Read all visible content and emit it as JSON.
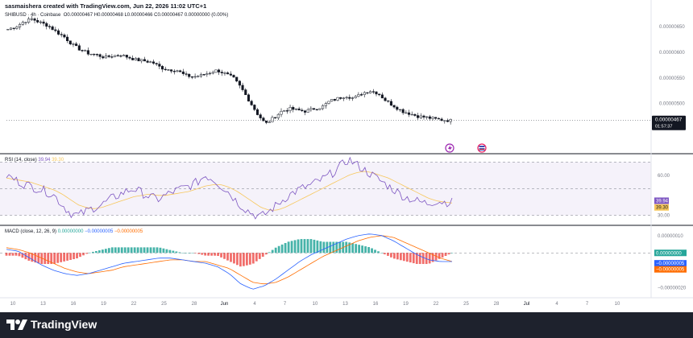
{
  "header": {
    "creator_text": "sasmaishera created with TradingView.com, Jun 22, 2026 11:02 UTC+1",
    "symbol": "SHIBUSD · 4h · Coinbase",
    "ohlc": "O0.00000467 H0.00000468 L0.00000466 C0.00000467 0.00000000 (0.00%)"
  },
  "colors": {
    "up": "#26a69a",
    "down": "#ef5350",
    "rsi_line": "#7e57c2",
    "rsi_ma": "#f7c75b",
    "macd_line": "#2962ff",
    "signal_line": "#ff6d00",
    "footer_bg": "#1e222d"
  },
  "chart_data": [
    {
      "type": "candlestick",
      "name": "price",
      "x_ticks": [
        "10",
        "13",
        "16",
        "19",
        "22",
        "25",
        "28",
        "Jun",
        "4",
        "7",
        "10",
        "13",
        "16",
        "19",
        "22",
        "25",
        "28",
        "Jul",
        "4",
        "7",
        "10"
      ],
      "y_ticks": [
        "0.00000650",
        "0.00000600",
        "0.00000550",
        "0.00000500"
      ],
      "ylim": [
        4.1e-06,
        6.8e-06
      ],
      "last_price": "0.00000467",
      "countdown": "01:57:37",
      "close_path": [
        6.45e-06,
        6.5e-06,
        6.6e-06,
        6.65e-06,
        6.58e-06,
        6.52e-06,
        6.4e-06,
        6.3e-06,
        6.15e-06,
        6.05e-06,
        5.98e-06,
        5.95e-06,
        5.9e-06,
        5.93e-06,
        5.95e-06,
        5.9e-06,
        5.85e-06,
        5.83e-06,
        5.8e-06,
        5.7e-06,
        5.66e-06,
        5.65e-06,
        5.55e-06,
        5.52e-06,
        5.55e-06,
        5.6e-06,
        5.65e-06,
        5.58e-06,
        5.5e-06,
        5.3e-06,
        5.05e-06,
        4.8e-06,
        4.6e-06,
        4.72e-06,
        4.85e-06,
        4.9e-06,
        4.87e-06,
        4.85e-06,
        4.9e-06,
        4.93e-06,
        5.05e-06,
        5.1e-06,
        5.15e-06,
        5.1e-06,
        5.2e-06,
        5.25e-06,
        5.2e-06,
        5.05e-06,
        4.95e-06,
        4.85e-06,
        4.8e-06,
        4.75e-06,
        4.73e-06,
        4.7e-06,
        4.68e-06,
        4.67e-06
      ]
    },
    {
      "type": "line",
      "name": "RSI",
      "label": "RSI",
      "params": "(14, close)",
      "rsi_value": "39.94",
      "ma_value": "39.30",
      "y_ticks": [
        "60.00",
        "30.00"
      ],
      "ylim": [
        25,
        75
      ],
      "band": [
        30,
        70
      ],
      "rsi_path": [
        60,
        57,
        54,
        52,
        50,
        48,
        45,
        38,
        32,
        30,
        33,
        36,
        38,
        42,
        45,
        48,
        50,
        47,
        44,
        42,
        45,
        48,
        50,
        52,
        55,
        60,
        57,
        52,
        47,
        40,
        35,
        31,
        29,
        33,
        38,
        43,
        47,
        50,
        52,
        55,
        58,
        62,
        67,
        72,
        68,
        64,
        60,
        56,
        52,
        48,
        44,
        42,
        40,
        39,
        41,
        40,
        39.94
      ],
      "ma_path": [
        58,
        57,
        56,
        55,
        53,
        51,
        49,
        46,
        42,
        38,
        36,
        35,
        36,
        38,
        40,
        42,
        44,
        45,
        46,
        45,
        45,
        46,
        47,
        48,
        50,
        52,
        53,
        53,
        51,
        48,
        44,
        40,
        36,
        34,
        34,
        36,
        39,
        42,
        45,
        48,
        51,
        54,
        57,
        60,
        62,
        63,
        62,
        60,
        58,
        55,
        52,
        49,
        46,
        43,
        41,
        40,
        39.3
      ]
    },
    {
      "type": "bar",
      "name": "MACD",
      "label": "MACD",
      "params": "(close, 12, 26, 9)",
      "hist_value": "0.00000000",
      "macd_value": "−0.00000005",
      "signal_value": "−0.00000005",
      "y_ticks": [
        "0.00000010",
        "0.00000000",
        "−0.00000005",
        "−0.00000010",
        "−0.00000020"
      ],
      "ylim": [
        -2.5e-07,
        1.5e-07
      ],
      "macd_path": [
        2e-08,
        1e-08,
        -3e-08,
        -7e-08,
        -1e-07,
        -1.2e-07,
        -1.3e-07,
        -1.2e-07,
        -1e-07,
        -8e-08,
        -6e-08,
        -5e-08,
        -4e-08,
        -3e-08,
        -3e-08,
        -4e-08,
        -5e-08,
        -6e-08,
        -8e-08,
        -1.2e-07,
        -1.8e-07,
        -2.1e-07,
        -1.9e-07,
        -1.5e-07,
        -1e-07,
        -5e-08,
        -1e-08,
        2e-08,
        5e-08,
        8e-08,
        1e-07,
        1.1e-07,
        1e-07,
        7e-08,
        3e-08,
        -1e-08,
        -4e-08,
        -5e-08,
        -5e-08
      ],
      "signal_path": [
        3e-08,
        2e-08,
        0.0,
        -3e-08,
        -6e-08,
        -9e-08,
        -1.1e-07,
        -1.2e-07,
        -1.1e-07,
        -1e-07,
        -8e-08,
        -7e-08,
        -6e-08,
        -5e-08,
        -4e-08,
        -4e-08,
        -5e-08,
        -5e-08,
        -7e-08,
        -9e-08,
        -1.3e-07,
        -1.7e-07,
        -1.8e-07,
        -1.7e-07,
        -1.4e-07,
        -1e-07,
        -6e-08,
        -2e-08,
        1e-08,
        4e-08,
        7e-08,
        9e-08,
        1e-07,
        9e-08,
        6e-08,
        3e-08,
        0.0,
        -3e-08,
        -5e-08
      ]
    }
  ],
  "footer": {
    "brand": "TradingView"
  }
}
